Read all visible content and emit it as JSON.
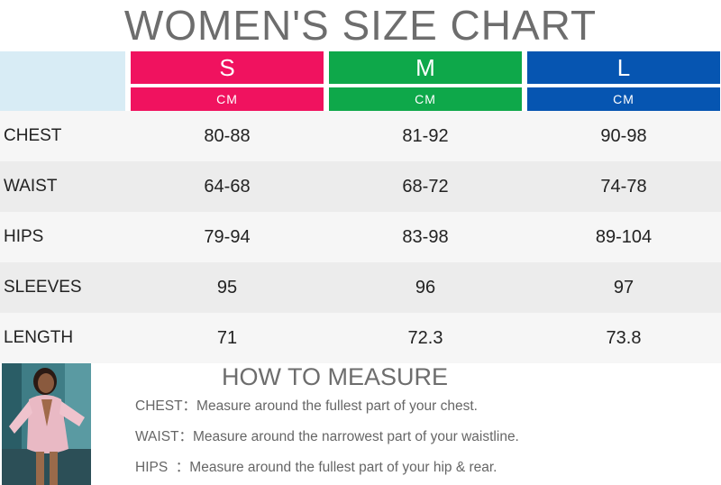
{
  "title": "WOMEN'S SIZE CHART",
  "sizes": [
    {
      "label": "S",
      "unit": "CM",
      "color": "#f0125f"
    },
    {
      "label": "M",
      "unit": "CM",
      "color": "#0ea84a"
    },
    {
      "label": "L",
      "unit": "CM",
      "color": "#0655b1"
    }
  ],
  "rows": [
    {
      "label": "CHEST",
      "values": [
        "80-88",
        "81-92",
        "90-98"
      ]
    },
    {
      "label": "WAIST",
      "values": [
        "64-68",
        "68-72",
        "74-78"
      ]
    },
    {
      "label": "HIPS",
      "values": [
        "79-94",
        "83-98",
        "89-104"
      ]
    },
    {
      "label": "SLEEVES",
      "values": [
        "95",
        "96",
        "97"
      ]
    },
    {
      "label": "LENGTH",
      "values": [
        "71",
        "72.3",
        "73.8"
      ]
    }
  ],
  "how_to_measure": {
    "title": "HOW TO MEASURE",
    "items": [
      {
        "key": "CHEST：",
        "text": "Measure around the fullest part of your chest."
      },
      {
        "key": "WAIST：",
        "text": "Measure around the narrowest part of your waistline."
      },
      {
        "key": "HIPS  ：",
        "text": "Measure around the fullest part of your hip & rear."
      }
    ]
  }
}
